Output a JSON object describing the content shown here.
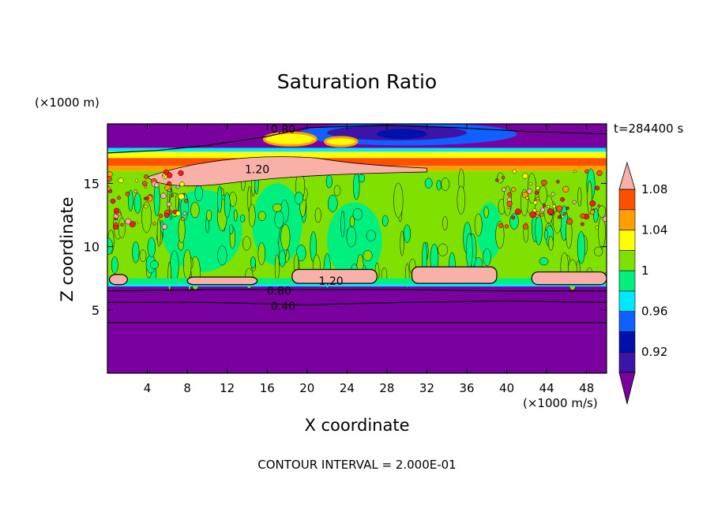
{
  "chart_data": {
    "type": "heatmap",
    "title": "Saturation Ratio",
    "xlabel": "X coordinate",
    "ylabel": "Z coordinate",
    "x_unit": "(×1000 m/s)",
    "y_unit": "(×1000 m)",
    "time_label": "t=284400 s",
    "footer": "CONTOUR INTERVAL = 2.000E-01",
    "xlim": [
      0,
      50
    ],
    "ylim": [
      0,
      19.7
    ],
    "x_ticks": [
      4,
      8,
      12,
      16,
      20,
      24,
      28,
      32,
      36,
      40,
      44,
      48
    ],
    "y_ticks": [
      5,
      10,
      15
    ],
    "colorbar": {
      "levels": [
        0.92,
        0.94,
        0.96,
        0.98,
        1.0,
        1.02,
        1.04,
        1.06,
        1.08,
        1.1
      ],
      "colors": [
        "#7b00a0",
        "#3c14a8",
        "#0010aa",
        "#1060ff",
        "#00e8ff",
        "#00f080",
        "#80e000",
        "#ffff00",
        "#ffa000",
        "#ff5000",
        "#ff1818",
        "#f8b0a8"
      ],
      "tick_labels": [
        "0.92",
        "0.96",
        "1",
        "1.04",
        "1.08"
      ],
      "tick_values": [
        0.92,
        0.96,
        1.0,
        1.04,
        1.08
      ]
    },
    "contour_labels": [
      {
        "text": "0.80",
        "x": 17.6,
        "z": 19.3
      },
      {
        "text": "1.20",
        "x": 15.0,
        "z": 16.1
      },
      {
        "text": "1.20",
        "x": 22.4,
        "z": 7.3
      },
      {
        "text": "0.80",
        "x": 17.2,
        "z": 6.5
      },
      {
        "text": "0.40",
        "x": 17.6,
        "z": 5.3
      }
    ],
    "regions": {
      "lower_dry_top_z": 6.9,
      "cloud_layer_z": [
        7.0,
        16.0
      ],
      "upper_supersaturated_z": [
        16.0,
        17.4
      ],
      "stratosphere_base_z": 17.8
    }
  }
}
